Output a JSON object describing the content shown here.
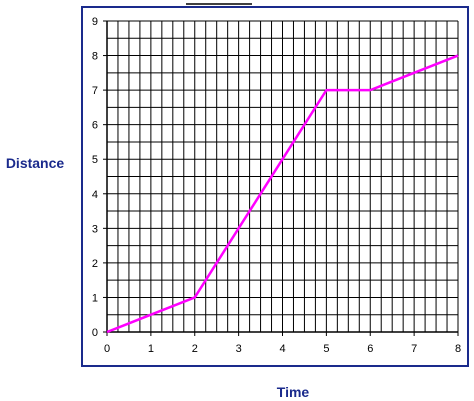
{
  "chart_data": {
    "type": "line",
    "title": "",
    "xlabel": "Time",
    "ylabel": "Distance",
    "xlim": [
      0,
      8
    ],
    "ylim": [
      0,
      9
    ],
    "x_ticks": [
      "0",
      "1",
      "2",
      "3",
      "4",
      "5",
      "6",
      "7",
      "8"
    ],
    "y_ticks": [
      "0",
      "1",
      "2",
      "3",
      "4",
      "5",
      "6",
      "7",
      "8",
      "9"
    ],
    "grid": true,
    "legend": "none",
    "series": [
      {
        "x": [
          0,
          1,
          2,
          3,
          4,
          5,
          6,
          7,
          8
        ],
        "values": [
          0,
          0.5,
          1,
          3,
          5,
          7,
          7,
          7.5,
          8
        ],
        "color": "#ff00ff"
      }
    ],
    "colors": {
      "axis_title": "#1a2a8c",
      "frame": "#1a2a8c",
      "grid": "#000000"
    }
  }
}
